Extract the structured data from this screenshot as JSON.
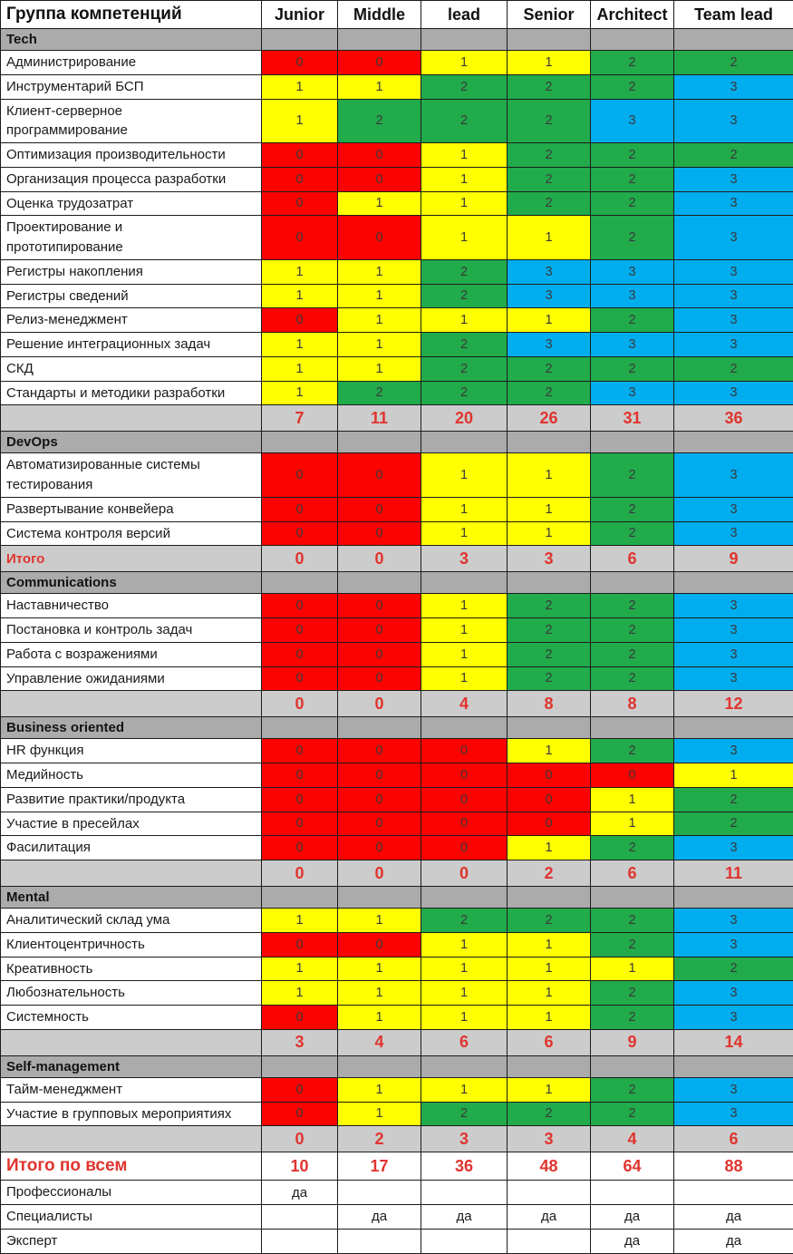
{
  "palette": {
    "value_fill": {
      "0": "#fb0301",
      "1": "#ffff00",
      "2": "#21ab4b",
      "3": "#00aeef"
    },
    "section_bg": "#ababab",
    "totals_bg": "#cccccc",
    "totals_text": "#e0342e",
    "grid": "#1c1c1c"
  },
  "chart_data": {
    "type": "table",
    "title": "Группа компетенций",
    "columns": [
      "Junior",
      "Middle",
      "lead",
      "Senior",
      "Architect",
      "Team lead"
    ],
    "value_color_legend": {
      "0": "red",
      "1": "yellow",
      "2": "green",
      "3": "blue"
    },
    "sections": [
      {
        "name": "Tech",
        "rows": [
          {
            "label": "Администрирование",
            "values": [
              0,
              0,
              1,
              1,
              2,
              2
            ]
          },
          {
            "label": "Инструментарий БСП",
            "values": [
              1,
              1,
              2,
              2,
              2,
              3
            ]
          },
          {
            "label": "Клиент-серверное\nпрограммирование",
            "values": [
              1,
              2,
              2,
              2,
              3,
              3
            ]
          },
          {
            "label": "Оптимизация производительности",
            "values": [
              0,
              0,
              1,
              2,
              2,
              2
            ]
          },
          {
            "label": "Организация процесса разработки",
            "values": [
              0,
              0,
              1,
              2,
              2,
              3
            ]
          },
          {
            "label": "Оценка трудозатрат",
            "values": [
              0,
              1,
              1,
              2,
              2,
              3
            ]
          },
          {
            "label": "Проектирование и\nпрототипирование",
            "values": [
              0,
              0,
              1,
              1,
              2,
              3
            ]
          },
          {
            "label": "Регистры накопления",
            "values": [
              1,
              1,
              2,
              3,
              3,
              3
            ]
          },
          {
            "label": "Регистры сведений",
            "values": [
              1,
              1,
              2,
              3,
              3,
              3
            ]
          },
          {
            "label": "Релиз-менеджмент",
            "values": [
              0,
              1,
              1,
              1,
              2,
              3
            ]
          },
          {
            "label": "Решение интеграционных задач",
            "values": [
              1,
              1,
              2,
              3,
              3,
              3
            ]
          },
          {
            "label": "СКД",
            "values": [
              1,
              1,
              2,
              2,
              2,
              2
            ]
          },
          {
            "label": "Стандарты и методики разработки",
            "values": [
              1,
              2,
              2,
              2,
              3,
              3
            ]
          }
        ],
        "total_label": "",
        "totals": [
          7,
          11,
          20,
          26,
          31,
          36
        ]
      },
      {
        "name": "DevOps",
        "rows": [
          {
            "label": "Автоматизированные системы\nтестирования",
            "values": [
              0,
              0,
              1,
              1,
              2,
              3
            ]
          },
          {
            "label": "Развертывание конвейера",
            "values": [
              0,
              0,
              1,
              1,
              2,
              3
            ]
          },
          {
            "label": "Система контроля версий",
            "values": [
              0,
              0,
              1,
              1,
              2,
              3
            ]
          }
        ],
        "total_label": "Итого",
        "totals": [
          0,
          0,
          3,
          3,
          6,
          9
        ]
      },
      {
        "name": "Communications",
        "rows": [
          {
            "label": "Наставничество",
            "values": [
              0,
              0,
              1,
              2,
              2,
              3
            ]
          },
          {
            "label": "Постановка и контроль задач",
            "values": [
              0,
              0,
              1,
              2,
              2,
              3
            ]
          },
          {
            "label": "Работа с возражениями",
            "values": [
              0,
              0,
              1,
              2,
              2,
              3
            ]
          },
          {
            "label": "Управление ожиданиями",
            "values": [
              0,
              0,
              1,
              2,
              2,
              3
            ]
          }
        ],
        "total_label": "",
        "totals": [
          0,
          0,
          4,
          8,
          8,
          12
        ]
      },
      {
        "name": "Business oriented",
        "rows": [
          {
            "label": "HR функция",
            "values": [
              0,
              0,
              0,
              1,
              2,
              3
            ]
          },
          {
            "label": "Медийность",
            "values": [
              0,
              0,
              0,
              0,
              0,
              1
            ]
          },
          {
            "label": "Развитие практики/продукта",
            "values": [
              0,
              0,
              0,
              0,
              1,
              2
            ]
          },
          {
            "label": "Участие в пресейлах",
            "values": [
              0,
              0,
              0,
              0,
              1,
              2
            ]
          },
          {
            "label": "Фасилитация",
            "values": [
              0,
              0,
              0,
              1,
              2,
              3
            ]
          }
        ],
        "total_label": "",
        "totals": [
          0,
          0,
          0,
          2,
          6,
          11
        ]
      },
      {
        "name": "Mental",
        "rows": [
          {
            "label": "Аналитический склад ума",
            "values": [
              1,
              1,
              2,
              2,
              2,
              3
            ]
          },
          {
            "label": "Клиентоцентричность",
            "values": [
              0,
              0,
              1,
              1,
              2,
              3
            ]
          },
          {
            "label": "Креативность",
            "values": [
              1,
              1,
              1,
              1,
              1,
              2
            ]
          },
          {
            "label": "Любознательность",
            "values": [
              1,
              1,
              1,
              1,
              2,
              3
            ]
          },
          {
            "label": "Системность",
            "values": [
              0,
              1,
              1,
              1,
              2,
              3
            ]
          }
        ],
        "total_label": "",
        "totals": [
          3,
          4,
          6,
          6,
          9,
          14
        ]
      },
      {
        "name": "Self-management",
        "rows": [
          {
            "label": "Тайм-менеджмент",
            "values": [
              0,
              1,
              1,
              1,
              2,
              3
            ]
          },
          {
            "label": "Участие в групповых мероприятиях",
            "values": [
              0,
              1,
              2,
              2,
              2,
              3
            ]
          }
        ],
        "total_label": "",
        "totals": [
          0,
          2,
          3,
          3,
          4,
          6
        ]
      }
    ],
    "grand_total": {
      "label": "Итого по всем",
      "values": [
        10,
        17,
        36,
        48,
        64,
        88
      ]
    },
    "levels": [
      {
        "label": "Профессионалы",
        "values": [
          "да",
          "",
          "",
          "",
          "",
          ""
        ]
      },
      {
        "label": "Специалисты",
        "values": [
          "",
          "да",
          "да",
          "да",
          "да",
          "да"
        ]
      },
      {
        "label": "Эксперт",
        "values": [
          "",
          "",
          "",
          "",
          "да",
          "да"
        ]
      }
    ]
  }
}
